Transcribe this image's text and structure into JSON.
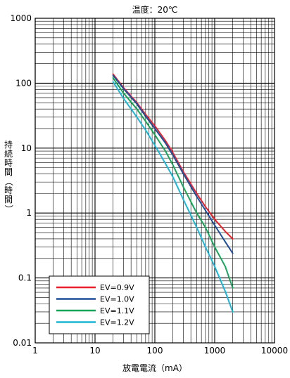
{
  "chart_data": {
    "type": "line",
    "title": "温度：20℃",
    "xlabel": "放電電流（mA）",
    "ylabel": "持続時間（時間）",
    "x_scale": "log",
    "y_scale": "log",
    "xlim": [
      1,
      10000
    ],
    "ylim": [
      0.01,
      1000
    ],
    "x_ticks": [
      "1",
      "10",
      "100",
      "1000",
      "10000"
    ],
    "y_ticks": [
      "0.01",
      "0.1",
      "1",
      "10",
      "100",
      "1000"
    ],
    "grid": true,
    "legend_position": "bottom-left",
    "series": [
      {
        "name": "EV=0.9V",
        "color": "#e8202a",
        "x": [
          20,
          30,
          50,
          70,
          100,
          150,
          200,
          300,
          500,
          700,
          1000,
          1500,
          2000
        ],
        "y": [
          138,
          85,
          50,
          33,
          22,
          13,
          8.5,
          4.3,
          2.0,
          1.25,
          0.8,
          0.52,
          0.4
        ]
      },
      {
        "name": "EV=1.0V",
        "color": "#1f4e9a",
        "x": [
          20,
          30,
          50,
          70,
          100,
          150,
          200,
          300,
          500,
          700,
          1000,
          1500,
          2000
        ],
        "y": [
          132,
          82,
          48,
          31,
          20,
          12,
          7.8,
          4.0,
          1.8,
          1.1,
          0.65,
          0.36,
          0.24
        ]
      },
      {
        "name": "EV=1.1V",
        "color": "#18a55a",
        "x": [
          20,
          30,
          50,
          70,
          100,
          150,
          200,
          300,
          500,
          700,
          1000,
          1500,
          2000
        ],
        "y": [
          120,
          70,
          40,
          26,
          16,
          9.0,
          5.5,
          2.5,
          1.0,
          0.6,
          0.3,
          0.15,
          0.07
        ]
      },
      {
        "name": "EV=1.2V",
        "color": "#1ab7d6",
        "x": [
          20,
          30,
          50,
          70,
          100,
          150,
          200,
          300,
          500,
          700,
          1000,
          1500,
          2000
        ],
        "y": [
          105,
          58,
          30,
          19,
          11,
          5.8,
          3.6,
          1.6,
          0.6,
          0.3,
          0.15,
          0.062,
          0.03
        ]
      }
    ]
  }
}
